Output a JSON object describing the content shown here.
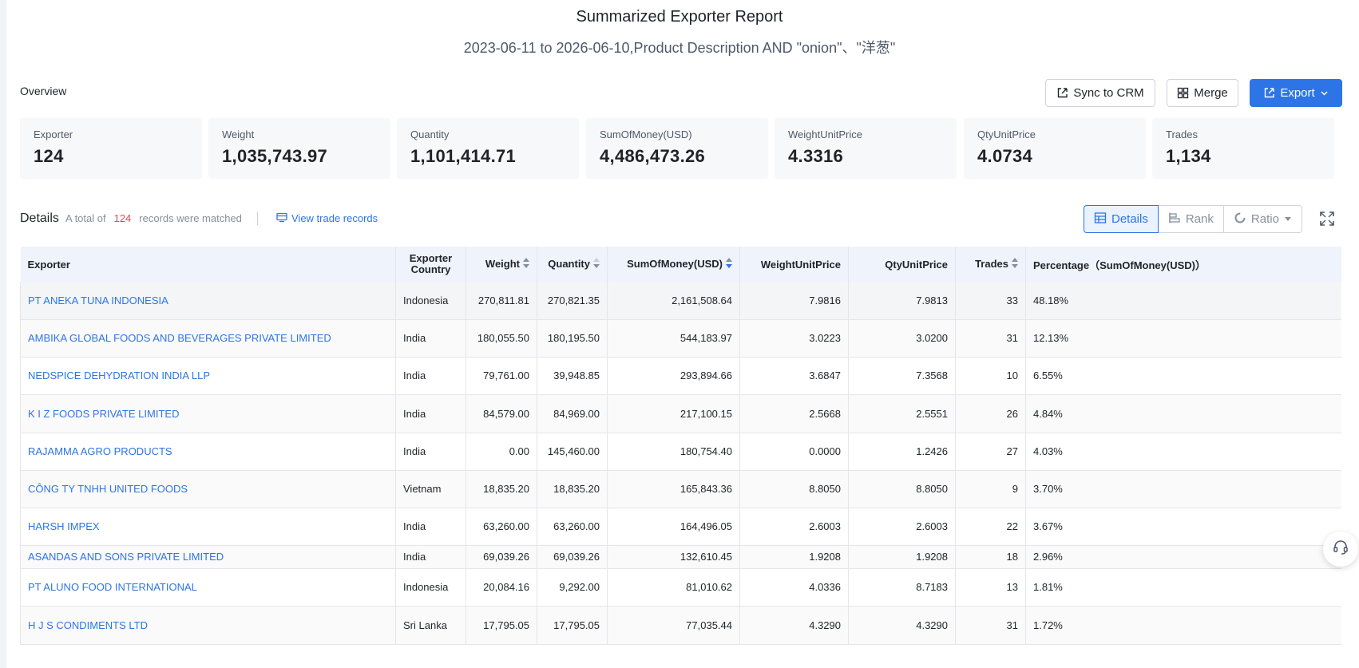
{
  "report": {
    "title": "Summarized Exporter Report",
    "subtitle": "2023-06-11 to 2026-06-10,Product Description AND \"onion\"、\"洋葱\""
  },
  "overview": {
    "label": "Overview",
    "sync_label": "Sync to CRM",
    "merge_label": "Merge",
    "export_label": "Export",
    "stats": [
      {
        "label": "Exporter",
        "value": "124"
      },
      {
        "label": "Weight",
        "value": "1,035,743.97"
      },
      {
        "label": "Quantity",
        "value": "1,101,414.71"
      },
      {
        "label": "SumOfMoney(USD)",
        "value": "4,486,473.26"
      },
      {
        "label": "WeightUnitPrice",
        "value": "4.3316"
      },
      {
        "label": "QtyUnitPrice",
        "value": "4.0734"
      },
      {
        "label": "Trades",
        "value": "1,134"
      }
    ]
  },
  "details": {
    "label": "Details",
    "total_prefix": "A total of",
    "total_count": "124",
    "total_suffix": "records were matched",
    "view_trades": "View trade records",
    "tabs": {
      "details": "Details",
      "rank": "Rank",
      "ratio": "Ratio"
    }
  },
  "table": {
    "headers": {
      "exporter": "Exporter",
      "country_line1": "Exporter",
      "country_line2": "Country",
      "weight": "Weight",
      "quantity": "Quantity",
      "money": "SumOfMoney(USD)",
      "wup": "WeightUnitPrice",
      "qup": "QtyUnitPrice",
      "trades": "Trades",
      "percentage": "Percentage（SumOfMoney(USD)）"
    },
    "rows": [
      {
        "exporter": "PT ANEKA TUNA INDONESIA",
        "country": "Indonesia",
        "weight": "270,811.81",
        "quantity": "270,821.35",
        "money": "2,161,508.64",
        "wup": "7.9816",
        "qup": "7.9813",
        "trades": "33",
        "pct": "48.18%"
      },
      {
        "exporter": "AMBIKA GLOBAL FOODS AND BEVERAGES PRIVATE LIMITED",
        "country": "India",
        "weight": "180,055.50",
        "quantity": "180,195.50",
        "money": "544,183.97",
        "wup": "3.0223",
        "qup": "3.0200",
        "trades": "31",
        "pct": "12.13%"
      },
      {
        "exporter": "NEDSPICE DEHYDRATION INDIA LLP",
        "country": "India",
        "weight": "79,761.00",
        "quantity": "39,948.85",
        "money": "293,894.66",
        "wup": "3.6847",
        "qup": "7.3568",
        "trades": "10",
        "pct": "6.55%"
      },
      {
        "exporter": "K I Z FOODS PRIVATE LIMITED",
        "country": "India",
        "weight": "84,579.00",
        "quantity": "84,969.00",
        "money": "217,100.15",
        "wup": "2.5668",
        "qup": "2.5551",
        "trades": "26",
        "pct": "4.84%"
      },
      {
        "exporter": "RAJAMMA AGRO PRODUCTS",
        "country": "India",
        "weight": "0.00",
        "quantity": "145,460.00",
        "money": "180,754.40",
        "wup": "0.0000",
        "qup": "1.2426",
        "trades": "27",
        "pct": "4.03%"
      },
      {
        "exporter": "CÔNG TY TNHH UNITED FOODS",
        "country": "Vietnam",
        "weight": "18,835.20",
        "quantity": "18,835.20",
        "money": "165,843.36",
        "wup": "8.8050",
        "qup": "8.8050",
        "trades": "9",
        "pct": "3.70%"
      },
      {
        "exporter": "HARSH IMPEX",
        "country": "India",
        "weight": "63,260.00",
        "quantity": "63,260.00",
        "money": "164,496.05",
        "wup": "2.6003",
        "qup": "2.6003",
        "trades": "22",
        "pct": "3.67%"
      },
      {
        "exporter": "ASANDAS AND SONS PRIVATE LIMITED",
        "country": "India",
        "weight": "69,039.26",
        "quantity": "69,039.26",
        "money": "132,610.45",
        "wup": "1.9208",
        "qup": "1.9208",
        "trades": "18",
        "pct": "2.96%"
      },
      {
        "exporter": "PT ALUNO FOOD INTERNATIONAL",
        "country": "Indonesia",
        "weight": "20,084.16",
        "quantity": "9,292.00",
        "money": "81,010.62",
        "wup": "4.0336",
        "qup": "8.7183",
        "trades": "13",
        "pct": "1.81%"
      },
      {
        "exporter": "H J S CONDIMENTS LTD",
        "country": "Sri Lanka",
        "weight": "17,795.05",
        "quantity": "17,795.05",
        "money": "77,035.44",
        "wup": "4.3290",
        "qup": "4.3290",
        "trades": "31",
        "pct": "1.72%"
      }
    ]
  },
  "colors": {
    "accent": "#2d74e6",
    "count_red": "#e5484d",
    "header_bg": "#eef3fc"
  }
}
